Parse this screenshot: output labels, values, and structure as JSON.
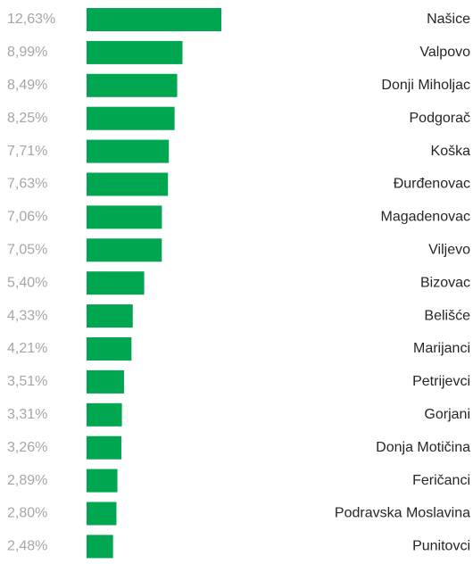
{
  "chart_data": {
    "type": "bar",
    "orientation": "horizontal",
    "color": "#00a650",
    "categories": [
      "Našice",
      "Valpovo",
      "Donji Miholjac",
      "Podgorač",
      "Koška",
      "Đurđenovac",
      "Magadenovac",
      "Viljevo",
      "Bizovac",
      "Belišće",
      "Marijanci",
      "Petrijevci",
      "Gorjani",
      "Donja Motičina",
      "Feričanci",
      "Podravska Moslavina",
      "Punitovci"
    ],
    "values": [
      12.63,
      8.99,
      8.49,
      8.25,
      7.71,
      7.63,
      7.06,
      7.05,
      5.4,
      4.33,
      4.21,
      3.51,
      3.31,
      3.26,
      2.89,
      2.8,
      2.48
    ],
    "value_labels": [
      "12,63%",
      "8,99%",
      "8,49%",
      "8,25%",
      "7,71%",
      "7,63%",
      "7,06%",
      "7,05%",
      "5,40%",
      "4,33%",
      "4,21%",
      "3,51%",
      "3,31%",
      "3,26%",
      "2,89%",
      "2,80%",
      "2,48%"
    ]
  }
}
